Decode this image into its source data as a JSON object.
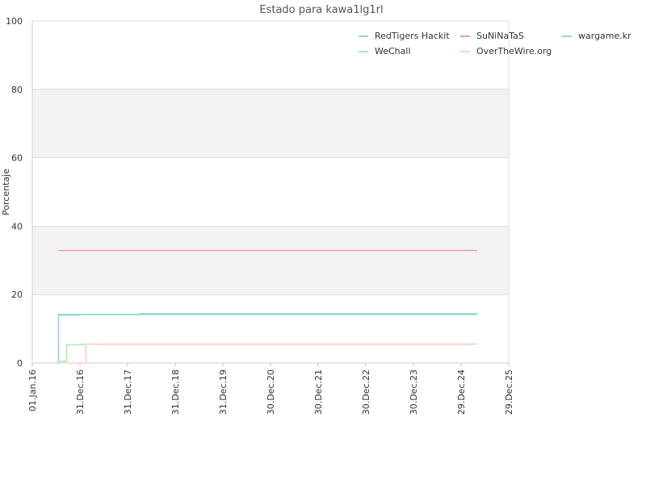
{
  "chart_data": {
    "type": "line",
    "title": "Estado para kawa1lg1rl",
    "xlabel": "",
    "ylabel": "Porcentaje",
    "ylim": [
      0,
      100
    ],
    "yticks": [
      0,
      20,
      40,
      60,
      80,
      100
    ],
    "xlim": [
      "2016-01-01",
      "2025-12-29"
    ],
    "xtick_labels": [
      "01.Jan.16",
      "31.Dec.16",
      "31.Dec.17",
      "31.Dec.18",
      "31.Dec.19",
      "30.Dec.20",
      "30.Dec.21",
      "30.Dec.22",
      "30.Dec.23",
      "29.Dec.24",
      "29.Dec.25"
    ],
    "xtick_dates": [
      "2016-01-01",
      "2016-12-31",
      "2017-12-31",
      "2018-12-31",
      "2019-12-31",
      "2020-12-30",
      "2021-12-30",
      "2022-12-30",
      "2023-12-30",
      "2024-12-29",
      "2025-12-29"
    ],
    "grid": "horizontal bands",
    "legend_position": "top-right",
    "series": [
      {
        "name": "RedTigers Hackit",
        "color": "#99ccee",
        "points": [
          [
            "2016-07-20",
            0
          ],
          [
            "2016-07-20",
            14.2
          ],
          [
            "2025-05-01",
            14.2
          ]
        ]
      },
      {
        "name": "WeChall",
        "color": "#aaeeaa",
        "points": [
          [
            "2016-07-20",
            0.5
          ],
          [
            "2016-09-20",
            0.5
          ],
          [
            "2016-09-20",
            5.3
          ],
          [
            "2017-01-15",
            5.3
          ],
          [
            "2017-01-15",
            5.5
          ],
          [
            "2025-05-01",
            5.5
          ]
        ]
      },
      {
        "name": "SuNiNaTaS",
        "color": "#ee99bb",
        "points": [
          [
            "2016-07-20",
            32.9
          ],
          [
            "2025-05-01",
            32.9
          ]
        ]
      },
      {
        "name": "OverTheWire.org",
        "color": "#ffcccc",
        "points": [
          [
            "2016-09-20",
            0
          ],
          [
            "2017-02-15",
            0
          ],
          [
            "2017-02-15",
            5.5
          ],
          [
            "2025-05-01",
            5.5
          ]
        ]
      },
      {
        "name": "wargame.kr",
        "color": "#88ddcc",
        "points": [
          [
            "2016-07-20",
            14.0
          ],
          [
            "2016-12-31",
            14.0
          ],
          [
            "2016-12-31",
            14.2
          ],
          [
            "2018-04-01",
            14.2
          ],
          [
            "2018-04-01",
            14.4
          ],
          [
            "2025-05-01",
            14.4
          ]
        ]
      }
    ]
  }
}
